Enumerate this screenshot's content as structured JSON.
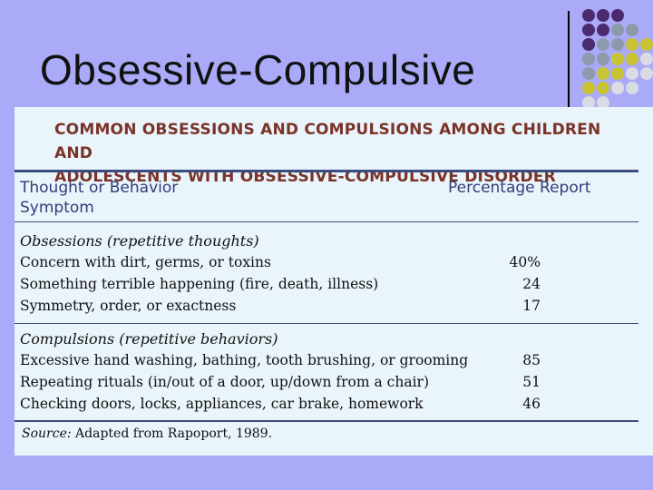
{
  "slide": {
    "title": "Obsessive-Compulsive",
    "colors": {
      "background": "#aaaaf8",
      "dot_purple": "#4b2a6e",
      "dot_gray": "#8d9aab",
      "dot_yellow": "#c8c434",
      "dot_light": "#d9dbe5"
    }
  },
  "table": {
    "heading_line1": "COMMON OBSESSIONS AND COMPULSIONS AMONG CHILDREN AND",
    "heading_line2": "ADOLESCENTS WITH OBSESSIVE-COMPULSIVE DISORDER",
    "col1_line1": "Thought or Behavior",
    "col1_line2": "Symptom",
    "col2": "Percentage Report",
    "obsessions": {
      "title": "Obsessions (repetitive thoughts)",
      "rows": [
        {
          "label": "Concern with dirt, germs, or toxins",
          "value": "40%"
        },
        {
          "label": "Something terrible happening (fire, death, illness)",
          "value": "24"
        },
        {
          "label": "Symmetry, order, or exactness",
          "value": "17"
        }
      ]
    },
    "compulsions": {
      "title": "Compulsions (repetitive behaviors)",
      "rows": [
        {
          "label": "Excessive hand washing, bathing, tooth brushing, or grooming",
          "value": "85"
        },
        {
          "label": "Repeating rituals (in/out of a door, up/down from a chair)",
          "value": "51"
        },
        {
          "label": "Checking doors, locks, appliances, car brake, homework",
          "value": "46"
        }
      ]
    },
    "source_prefix": "Source:",
    "source_text": " Adapted from Rapoport, 1989."
  }
}
